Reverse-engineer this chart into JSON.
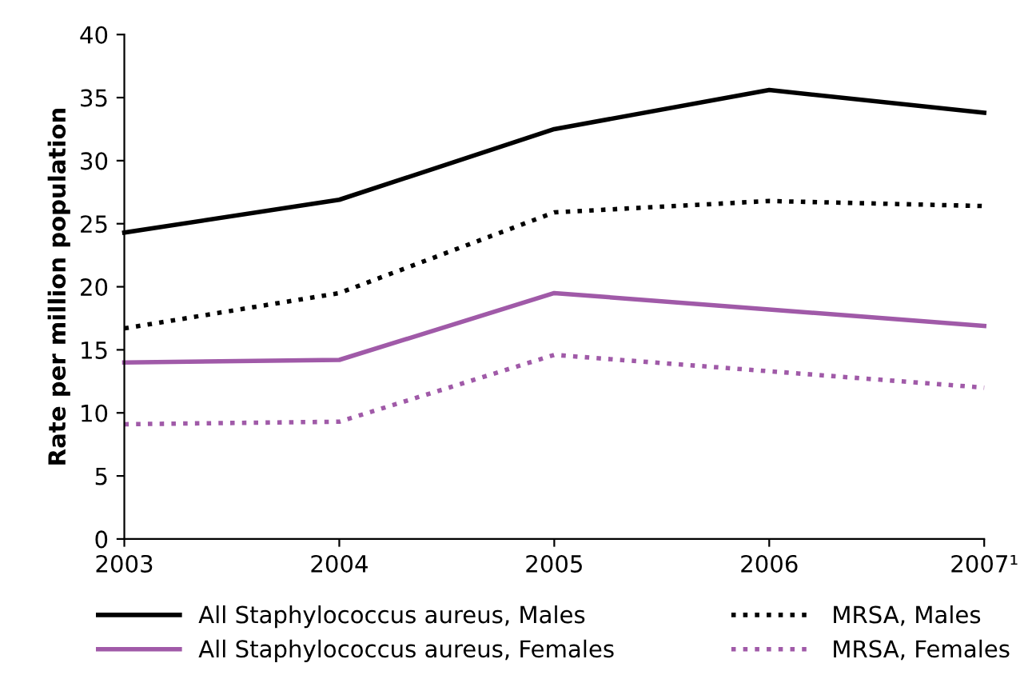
{
  "chart_data": {
    "type": "line",
    "ylabel": "Rate per million population",
    "x": [
      2003,
      2004,
      2005,
      2006,
      2007
    ],
    "xlim": [
      2003,
      2007
    ],
    "xticks": [
      2003,
      2004,
      2005,
      2006,
      {
        "value": 2007,
        "label": "2007¹"
      }
    ],
    "ylim": [
      0,
      40
    ],
    "yticks": [
      0,
      5,
      10,
      15,
      20,
      25,
      30,
      35,
      40
    ],
    "grid": false,
    "legend": "bottom",
    "marker": "none",
    "series": [
      {
        "name": "All Staphylococcus aureus, Males",
        "color": "#000000",
        "line_style": "solid",
        "values": [
          24.3,
          26.9,
          32.5,
          35.6,
          33.8
        ]
      },
      {
        "name": "MRSA, Males",
        "color": "#000000",
        "line_style": "dotted",
        "values": [
          16.7,
          19.5,
          25.9,
          26.8,
          26.4
        ]
      },
      {
        "name": "All Staphylococcus aureus, Females",
        "color": "#a05aa8",
        "line_style": "solid",
        "values": [
          14.0,
          14.2,
          19.5,
          18.2,
          16.9
        ]
      },
      {
        "name": "MRSA, Females",
        "color": "#a05aa8",
        "line_style": "dotted",
        "values": [
          9.1,
          9.3,
          14.6,
          13.3,
          12.0
        ]
      }
    ]
  }
}
